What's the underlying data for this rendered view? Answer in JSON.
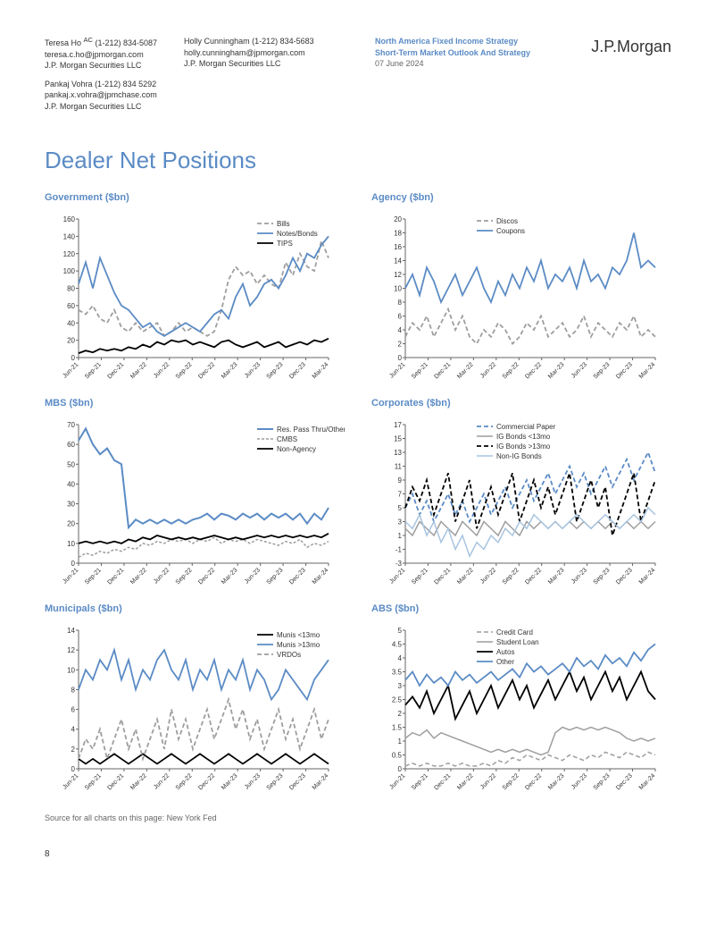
{
  "header": {
    "author1_name": "Teresa Ho",
    "author1_sup": "AC",
    "author1_phone": "(1-212) 834-5087",
    "author1_email": "teresa.c.ho@jpmorgan.com",
    "author1_firm": "J.P. Morgan Securities LLC",
    "author2_name": "Pankaj Vohra",
    "author2_phone": "(1-212) 834 5292",
    "author2_email": "pankaj.x.vohra@jpmchase.com",
    "author2_firm": "J.P. Morgan Securities LLC",
    "author3_name": "Holly Cunningham",
    "author3_phone": "(1-212) 834-5683",
    "author3_email": "holly.cunningham@jpmorgan.com",
    "author3_firm": "J.P. Morgan Securities LLC",
    "dept": "North America Fixed Income Strategy",
    "title": "Short-Term Market Outlook And Strategy",
    "date": "07 June 2024",
    "logo": "J.P.Morgan"
  },
  "page_title": "Dealer Net Positions",
  "source_note": "Source for all charts on this page: New York Fed",
  "page_number": "8",
  "x_labels": [
    "Jun-21",
    "Sep-21",
    "Dec-21",
    "Mar-22",
    "Jun-22",
    "Sep-22",
    "Dec-22",
    "Mar-23",
    "Jun-23",
    "Sep-23",
    "Dec-23",
    "Mar-24"
  ],
  "colors": {
    "blue": "#5b8bc5",
    "black": "#000000",
    "gray": "#9e9e9e",
    "light_blue": "#a8c4e0",
    "grid": "#d0d0d0",
    "axis": "#666666"
  },
  "charts": [
    {
      "title": "Government ($bn)",
      "ylim": [
        0,
        160
      ],
      "ytick_step": 20,
      "legend_pos": "top-right",
      "series": [
        {
          "name": "Bills",
          "color": "#9e9e9e",
          "dash": "5,3",
          "width": 1.8,
          "data": [
            55,
            50,
            60,
            45,
            40,
            55,
            35,
            30,
            40,
            30,
            35,
            40,
            25,
            30,
            40,
            30,
            35,
            30,
            25,
            30,
            55,
            90,
            105,
            95,
            100,
            85,
            95,
            85,
            80,
            110,
            95,
            120,
            105,
            100,
            135,
            115
          ]
        },
        {
          "name": "Notes/Bonds",
          "color": "#5b8bc5",
          "dash": "none",
          "width": 1.8,
          "data": [
            85,
            110,
            80,
            115,
            95,
            75,
            60,
            55,
            45,
            35,
            40,
            30,
            25,
            30,
            35,
            40,
            35,
            30,
            40,
            50,
            55,
            45,
            70,
            85,
            60,
            70,
            85,
            90,
            80,
            95,
            115,
            100,
            120,
            115,
            130,
            140
          ]
        },
        {
          "name": "TIPS",
          "color": "#000000",
          "dash": "none",
          "width": 1.8,
          "data": [
            5,
            8,
            6,
            10,
            8,
            10,
            8,
            12,
            10,
            15,
            12,
            18,
            15,
            20,
            18,
            20,
            15,
            18,
            15,
            12,
            18,
            20,
            15,
            12,
            15,
            18,
            12,
            15,
            18,
            12,
            15,
            18,
            15,
            20,
            18,
            22
          ]
        }
      ]
    },
    {
      "title": "Agency ($bn)",
      "ylim": [
        0,
        20
      ],
      "ytick_step": 2,
      "legend_pos": "top-center",
      "series": [
        {
          "name": "Discos",
          "color": "#9e9e9e",
          "dash": "5,3",
          "width": 1.8,
          "data": [
            3,
            5,
            4,
            6,
            3,
            5,
            7,
            4,
            6,
            3,
            2,
            4,
            3,
            5,
            4,
            2,
            3,
            5,
            4,
            6,
            3,
            4,
            5,
            3,
            4,
            6,
            3,
            5,
            4,
            3,
            5,
            4,
            6,
            3,
            4,
            3
          ]
        },
        {
          "name": "Coupons",
          "color": "#5b8bc5",
          "dash": "none",
          "width": 1.8,
          "data": [
            10,
            12,
            9,
            13,
            11,
            8,
            10,
            12,
            9,
            11,
            13,
            10,
            8,
            11,
            9,
            12,
            10,
            13,
            11,
            14,
            10,
            12,
            11,
            13,
            10,
            14,
            11,
            12,
            10,
            13,
            12,
            14,
            18,
            13,
            14,
            13
          ]
        }
      ]
    },
    {
      "title": "MBS ($bn)",
      "ylim": [
        0,
        70
      ],
      "ytick_step": 10,
      "legend_pos": "top-right",
      "series": [
        {
          "name": "Res. Pass Thru/Other",
          "color": "#5b8bc5",
          "dash": "none",
          "width": 2,
          "data": [
            62,
            68,
            60,
            55,
            58,
            52,
            50,
            18,
            22,
            20,
            22,
            20,
            22,
            20,
            22,
            20,
            22,
            23,
            25,
            22,
            25,
            24,
            22,
            25,
            23,
            25,
            22,
            25,
            23,
            25,
            22,
            25,
            20,
            25,
            22,
            28
          ]
        },
        {
          "name": "CMBS",
          "color": "#9e9e9e",
          "dash": "3,2",
          "width": 1.5,
          "data": [
            3,
            5,
            4,
            6,
            5,
            7,
            6,
            8,
            7,
            10,
            9,
            11,
            10,
            12,
            11,
            12,
            10,
            12,
            11,
            13,
            10,
            12,
            11,
            12,
            10,
            12,
            11,
            10,
            9,
            11,
            10,
            12,
            8,
            10,
            9,
            11
          ]
        },
        {
          "name": "Non-Agency",
          "color": "#000000",
          "dash": "none",
          "width": 1.8,
          "data": [
            10,
            11,
            10,
            11,
            10,
            11,
            10,
            12,
            11,
            13,
            12,
            14,
            13,
            12,
            13,
            12,
            13,
            12,
            13,
            14,
            13,
            12,
            13,
            12,
            13,
            14,
            13,
            14,
            13,
            14,
            13,
            14,
            13,
            14,
            13,
            15
          ]
        }
      ]
    },
    {
      "title": "Corporates ($bn)",
      "ylim": [
        -3,
        17
      ],
      "ytick_step": 2,
      "legend_pos": "top-center",
      "series": [
        {
          "name": "Commercial Paper",
          "color": "#5b8bc5",
          "dash": "5,3",
          "width": 1.8,
          "data": [
            5,
            7,
            4,
            6,
            3,
            5,
            7,
            4,
            6,
            3,
            5,
            7,
            4,
            6,
            8,
            5,
            7,
            9,
            6,
            8,
            10,
            7,
            9,
            11,
            8,
            10,
            7,
            9,
            11,
            8,
            10,
            12,
            9,
            11,
            13,
            10
          ]
        },
        {
          "name": "IG Bonds <13mo",
          "color": "#9e9e9e",
          "dash": "none",
          "width": 1.5,
          "data": [
            2,
            1,
            3,
            2,
            1,
            3,
            2,
            1,
            3,
            2,
            1,
            3,
            2,
            1,
            3,
            2,
            1,
            3,
            2,
            3,
            2,
            3,
            2,
            3,
            2,
            3,
            2,
            3,
            2,
            3,
            2,
            3,
            2,
            3,
            2,
            3
          ]
        },
        {
          "name": "IG Bonds >13mo",
          "color": "#000000",
          "dash": "5,3",
          "width": 1.8,
          "data": [
            5,
            8,
            6,
            9,
            4,
            7,
            10,
            3,
            6,
            9,
            2,
            5,
            8,
            4,
            7,
            10,
            3,
            6,
            9,
            5,
            8,
            4,
            7,
            10,
            3,
            6,
            9,
            5,
            8,
            1,
            4,
            7,
            10,
            3,
            6,
            9
          ]
        },
        {
          "name": "Non-IG Bonds",
          "color": "#a8c4e0",
          "dash": "none",
          "width": 1.5,
          "data": [
            3,
            2,
            4,
            1,
            3,
            0,
            2,
            -1,
            1,
            -2,
            0,
            -1,
            1,
            0,
            2,
            1,
            3,
            2,
            4,
            3,
            2,
            3,
            2,
            3,
            4,
            3,
            2,
            3,
            4,
            3,
            2,
            3,
            4,
            3,
            5,
            4
          ]
        }
      ]
    },
    {
      "title": "Municipals ($bn)",
      "ylim": [
        0,
        14
      ],
      "ytick_step": 2,
      "legend_pos": "top-right",
      "series": [
        {
          "name": "Munis <13mo",
          "color": "#000000",
          "dash": "none",
          "width": 1.8,
          "data": [
            1,
            0.5,
            1,
            0.5,
            1,
            1.5,
            1,
            0.5,
            1,
            1.5,
            1,
            0.5,
            1,
            1.5,
            1,
            0.5,
            1,
            1.5,
            1,
            0.5,
            1,
            1.5,
            1,
            0.5,
            1,
            1.5,
            1,
            0.5,
            1,
            1.5,
            1,
            0.5,
            1,
            1.5,
            1,
            0.5
          ]
        },
        {
          "name": "Munis >13mo",
          "color": "#5b8bc5",
          "dash": "none",
          "width": 1.8,
          "data": [
            8,
            10,
            9,
            11,
            10,
            12,
            9,
            11,
            8,
            10,
            9,
            11,
            12,
            10,
            9,
            11,
            8,
            10,
            9,
            11,
            8,
            10,
            9,
            11,
            8,
            10,
            9,
            7,
            8,
            10,
            9,
            8,
            7,
            9,
            10,
            11
          ]
        },
        {
          "name": "VRDOs",
          "color": "#9e9e9e",
          "dash": "5,3",
          "width": 1.8,
          "data": [
            1,
            3,
            2,
            4,
            1,
            3,
            5,
            2,
            4,
            1,
            3,
            5,
            2,
            6,
            3,
            5,
            2,
            4,
            6,
            3,
            5,
            7,
            4,
            6,
            3,
            5,
            2,
            4,
            6,
            3,
            5,
            2,
            4,
            6,
            3,
            5
          ]
        }
      ]
    },
    {
      "title": "ABS ($bn)",
      "ylim": [
        0,
        5
      ],
      "ytick_step": 0.5,
      "legend_pos": "top-center",
      "series": [
        {
          "name": "Credit Card",
          "color": "#9e9e9e",
          "dash": "5,3",
          "width": 1.5,
          "data": [
            0.1,
            0.2,
            0.1,
            0.2,
            0.1,
            0.1,
            0.2,
            0.1,
            0.2,
            0.1,
            0.1,
            0.2,
            0.1,
            0.3,
            0.2,
            0.4,
            0.3,
            0.5,
            0.4,
            0.3,
            0.5,
            0.4,
            0.3,
            0.5,
            0.4,
            0.3,
            0.5,
            0.4,
            0.6,
            0.5,
            0.4,
            0.6,
            0.5,
            0.4,
            0.6,
            0.5
          ]
        },
        {
          "name": "Student Loan",
          "color": "#9e9e9e",
          "dash": "none",
          "width": 1.5,
          "data": [
            1.1,
            1.3,
            1.2,
            1.4,
            1.1,
            1.3,
            1.2,
            1.1,
            1.0,
            0.9,
            0.8,
            0.7,
            0.6,
            0.7,
            0.6,
            0.7,
            0.6,
            0.7,
            0.6,
            0.5,
            0.6,
            1.3,
            1.5,
            1.4,
            1.5,
            1.4,
            1.5,
            1.4,
            1.5,
            1.4,
            1.3,
            1.1,
            1.0,
            1.1,
            1.0,
            1.1
          ]
        },
        {
          "name": "Autos",
          "color": "#000000",
          "dash": "none",
          "width": 1.8,
          "data": [
            2.3,
            2.6,
            2.2,
            2.8,
            2.0,
            2.5,
            3.0,
            1.8,
            2.3,
            2.8,
            2.0,
            2.5,
            3.0,
            2.2,
            2.7,
            3.2,
            2.5,
            3.0,
            2.2,
            2.7,
            3.2,
            2.5,
            3.0,
            3.5,
            2.8,
            3.3,
            2.5,
            3.0,
            3.5,
            2.8,
            3.3,
            2.5,
            3.0,
            3.5,
            2.8,
            2.5
          ]
        },
        {
          "name": "Other",
          "color": "#5b8bc5",
          "dash": "none",
          "width": 1.8,
          "data": [
            3.2,
            3.5,
            3.0,
            3.4,
            3.1,
            3.3,
            3.0,
            3.5,
            3.2,
            3.4,
            3.1,
            3.3,
            3.5,
            3.2,
            3.4,
            3.6,
            3.3,
            3.8,
            3.5,
            3.7,
            3.4,
            3.6,
            3.8,
            3.5,
            4.0,
            3.7,
            3.9,
            3.6,
            4.1,
            3.8,
            4.0,
            3.7,
            4.2,
            3.9,
            4.3,
            4.5
          ]
        }
      ]
    }
  ]
}
